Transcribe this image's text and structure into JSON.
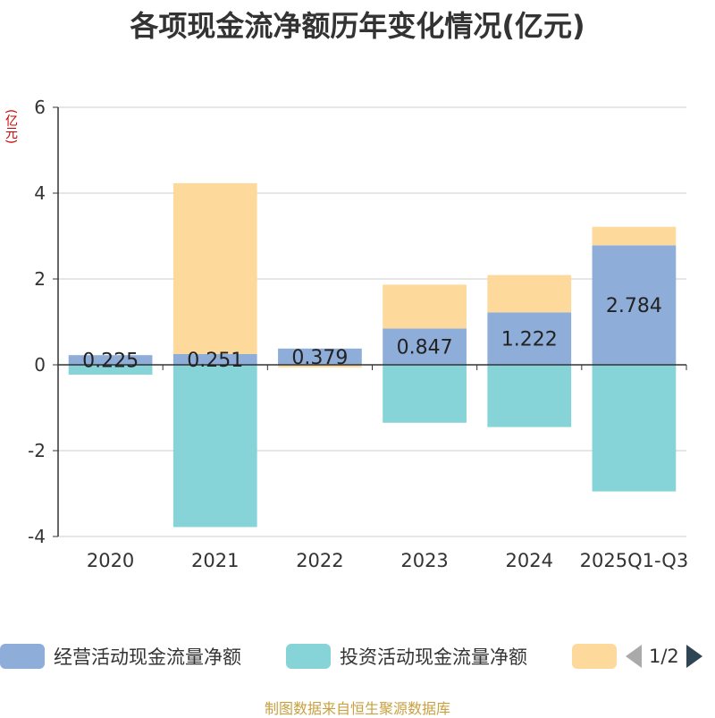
{
  "chart_data": {
    "type": "bar",
    "stacked": true,
    "title": "各项现金流净额历年变化情况(亿元)",
    "ylabel": "(亿元)",
    "xlabel": "",
    "ylim": [
      -4,
      6
    ],
    "yticks": [
      6,
      4,
      2,
      0,
      -2,
      -4
    ],
    "categories": [
      "2020",
      "2021",
      "2022",
      "2023",
      "2024",
      "2025Q1-Q3"
    ],
    "series": [
      {
        "name": "经营活动现金流量净额",
        "color": "#8fadd9",
        "values": [
          0.225,
          0.251,
          0.379,
          0.847,
          1.222,
          2.784
        ],
        "labels": [
          "0.225",
          "0.251",
          "0.379",
          "0.847",
          "1.222",
          "2.784"
        ]
      },
      {
        "name": "投资活动现金流量净额",
        "color": "#86d4d8",
        "values": [
          -0.23,
          -3.78,
          0,
          -1.35,
          -1.45,
          -2.95
        ]
      },
      {
        "name": "",
        "color": "#fdd99b",
        "values": [
          0,
          3.98,
          -0.06,
          1.02,
          0.87,
          0.43
        ]
      }
    ],
    "legend": {
      "page": "1/2"
    }
  },
  "source": "制图数据来自恒生聚源数据库"
}
